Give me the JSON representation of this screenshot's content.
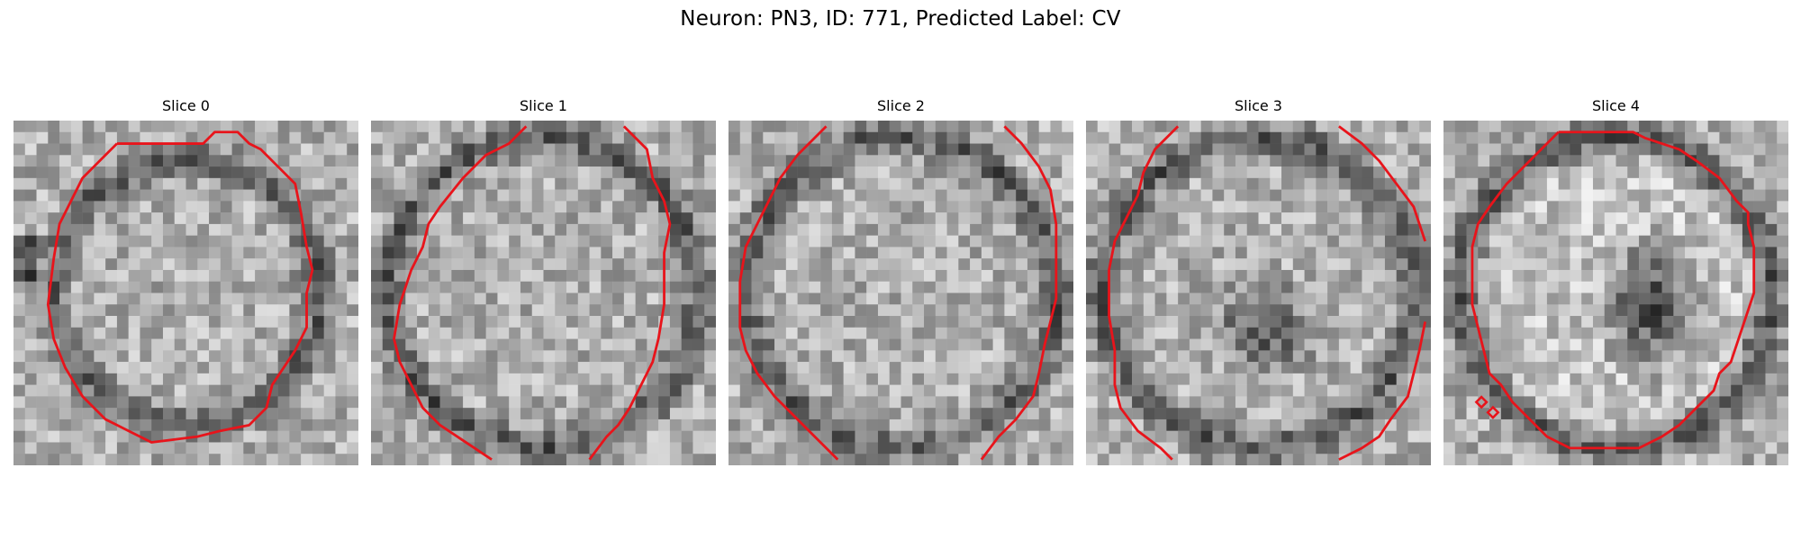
{
  "figure": {
    "title": "Neuron: PN3, ID: 771, Predicted Label: CV"
  },
  "colors": {
    "contour": "#e8141b",
    "grayscale_colormap": "gray"
  },
  "slices": [
    {
      "title": "Slice 0",
      "seed": 11,
      "shape": "ring-octagon",
      "dark_center": false
    },
    {
      "title": "Slice 1",
      "seed": 23,
      "shape": "large-octagon-open",
      "dark_center": false
    },
    {
      "title": "Slice 2",
      "seed": 37,
      "shape": "large-octagon-open",
      "dark_center": false
    },
    {
      "title": "Slice 3",
      "seed": 41,
      "shape": "large-octagon-open",
      "dark_center": true
    },
    {
      "title": "Slice 4",
      "seed": 53,
      "shape": "octagon-with-dark-nucleus",
      "dark_center": true
    }
  ]
}
